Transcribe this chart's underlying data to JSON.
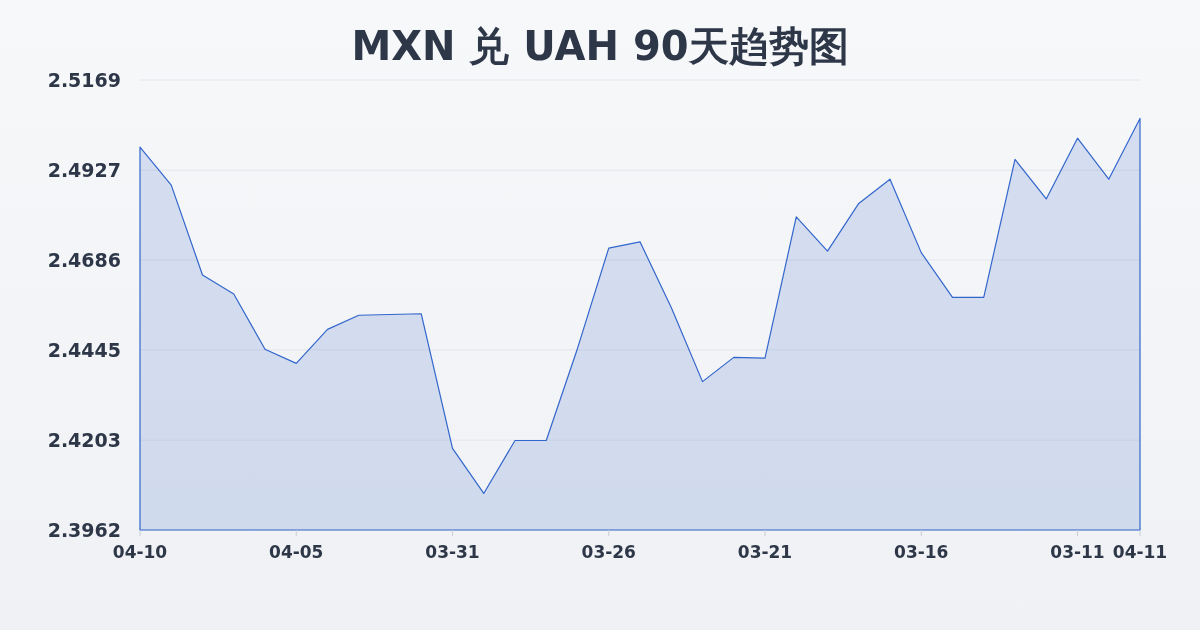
{
  "chart_data": {
    "type": "area",
    "title": "MXN 兑 UAH 90天趋势图",
    "categories": [
      "04-10",
      null,
      null,
      null,
      null,
      "04-05",
      null,
      null,
      null,
      null,
      "03-31",
      null,
      null,
      null,
      null,
      "03-26",
      null,
      null,
      null,
      null,
      "03-21",
      null,
      null,
      null,
      null,
      "03-16",
      null,
      null,
      null,
      null,
      "03-11",
      null,
      "04-11"
    ],
    "series": [
      {
        "color": "#3366cc",
        "values": [
          2.4989,
          2.4887,
          2.4646,
          2.4595,
          2.4447,
          2.4409,
          2.45,
          2.4538,
          2.454,
          2.4542,
          2.4181,
          2.406,
          2.4202,
          2.4202,
          2.4449,
          2.4718,
          2.4735,
          2.4559,
          2.436,
          2.4425,
          2.4423,
          2.4802,
          2.471,
          2.4838,
          2.4903,
          2.4706,
          2.4586,
          2.4586,
          2.4956,
          2.485,
          2.5013,
          2.4903,
          2.5066
        ]
      }
    ],
    "ylim": [
      2.3962,
      2.5169
    ],
    "yticks": [
      2.3962,
      2.4203,
      2.4445,
      2.4686,
      2.4927,
      2.5169
    ],
    "grid": "y"
  }
}
